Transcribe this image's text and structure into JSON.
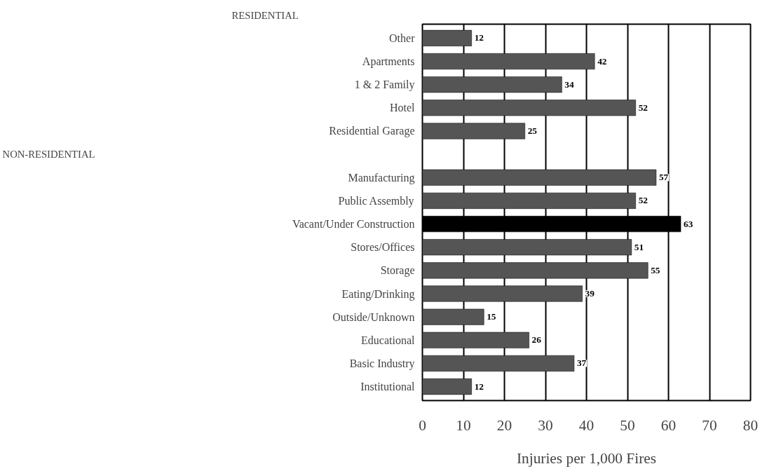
{
  "chart_data": {
    "type": "bar",
    "orientation": "horizontal",
    "xlabel": "Injuries per 1,000 Fires",
    "categories": [
      "Other",
      "Apartments",
      "1 & 2 Family",
      "Hotel",
      "Residential Garage",
      null,
      "Manufacturing",
      "Public Assembly",
      "Vacant/Under Construction",
      "Stores/Offices",
      "Storage",
      "Eating/Drinking",
      "Outside/Unknown",
      "Educational",
      "Basic Industry",
      "Institutional"
    ],
    "values": [
      12,
      42,
      34,
      52,
      25,
      null,
      57,
      52,
      63,
      51,
      55,
      39,
      15,
      26,
      37,
      12
    ],
    "colors": [
      "#555555",
      "#555555",
      "#555555",
      "#555555",
      "#555555",
      "#555555",
      "#555555",
      "#555555",
      "#000000",
      "#555555",
      "#555555",
      "#555555",
      "#555555",
      "#555555",
      "#555555",
      "#555555"
    ],
    "xlim": [
      0,
      80
    ],
    "xticks": [
      0,
      10,
      20,
      30,
      40,
      50,
      60,
      70,
      80
    ],
    "grid": "x",
    "data_labels": true,
    "annotations": [
      "RESIDENTIAL",
      "NON-RESIDENTIAL"
    ]
  }
}
